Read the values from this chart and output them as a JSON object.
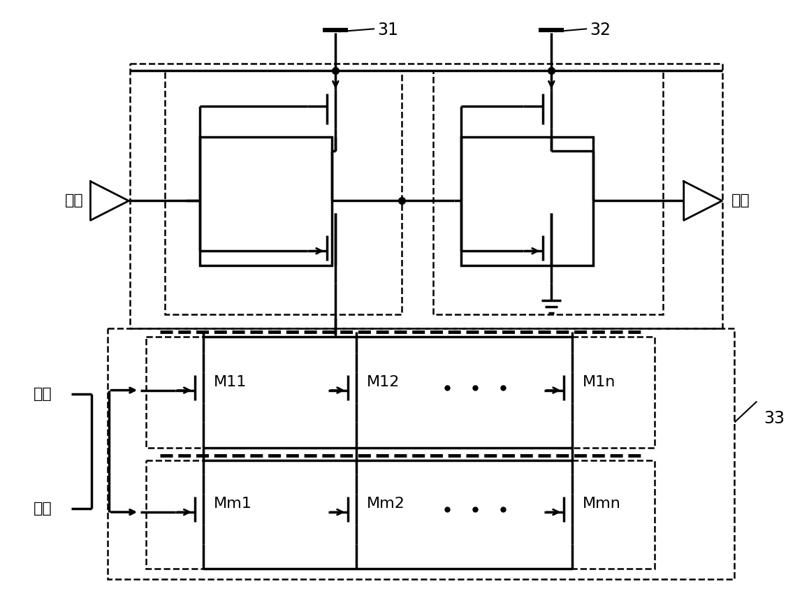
{
  "background": "#ffffff",
  "text_color": "#000000",
  "label_31": "31",
  "label_32": "32",
  "label_33": "33",
  "label_input": "输入",
  "label_output": "输出",
  "label_control_1": "控制",
  "label_control_2": "电压",
  "label_M11": "M11",
  "label_M12": "M12",
  "label_M1n": "M1n",
  "label_Mm1": "Mm1",
  "label_Mm2": "Mm2",
  "label_Mmn": "Mmn"
}
